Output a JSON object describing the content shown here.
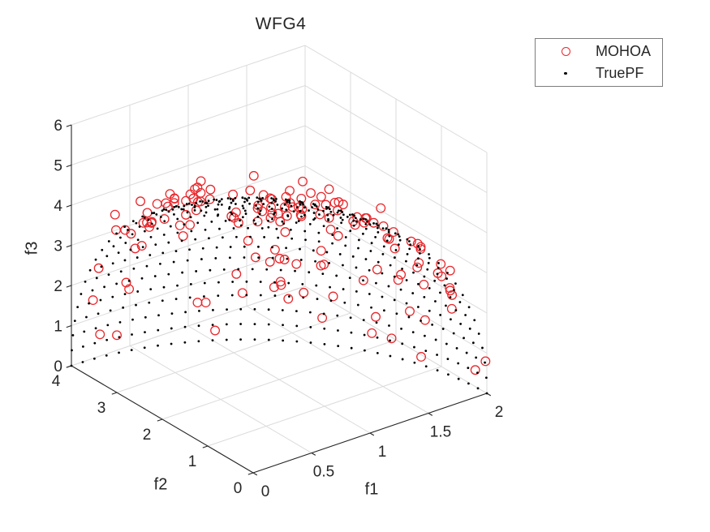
{
  "chart_data": {
    "type": "scatter",
    "projection": "3d",
    "title": "WFG4",
    "xlabel": "f1",
    "ylabel": "f2",
    "zlabel": "f3",
    "xlim": [
      0,
      2
    ],
    "ylim": [
      0,
      4
    ],
    "zlim": [
      0,
      6
    ],
    "x_ticks": [
      0,
      0.5,
      1,
      1.5,
      2
    ],
    "y_ticks": [
      0,
      1,
      2,
      3,
      4
    ],
    "z_ticks": [
      0,
      1,
      2,
      3,
      4,
      5,
      6
    ],
    "x_tick_labels": [
      "0",
      "0.5",
      "1",
      "1.5",
      "2"
    ],
    "y_tick_labels": [
      "0",
      "1",
      "2",
      "3",
      "4"
    ],
    "z_tick_labels": [
      "0",
      "1",
      "2",
      "3",
      "4",
      "5",
      "6"
    ],
    "grid": true,
    "view": {
      "azimuth": -37.5,
      "elevation": 30
    },
    "legend": {
      "position": "northeast-outside",
      "entries": [
        {
          "label": "MOHOA",
          "marker": "open-circle",
          "color": "#e8282c"
        },
        {
          "label": "TruePF",
          "marker": "point",
          "color": "#000000"
        }
      ]
    },
    "series": [
      {
        "name": "MOHOA",
        "marker": "open-circle",
        "color": "#e8282c",
        "count": 150,
        "seed": 20,
        "surface": "ellipsoid octant, radii [2,4,6] (WFG4 Pareto front), radial offset 1.00-1.10",
        "marker_radius_px": 5.3
      },
      {
        "name": "TruePF",
        "marker": "point",
        "color": "#000000",
        "surface": "ellipsoid octant, radii [2,4,6] (WFG4 true Pareto front)",
        "rings": 24,
        "ring_scale": 33,
        "marker_radius_px": 1.4
      }
    ]
  },
  "colors": {
    "mohoa": "#e8282c",
    "truepf": "#000000",
    "grid": "#dbdbdb",
    "axis": "#262626",
    "text": "#262626",
    "background": "#ffffff",
    "legend_border": "#7d7d7d"
  }
}
